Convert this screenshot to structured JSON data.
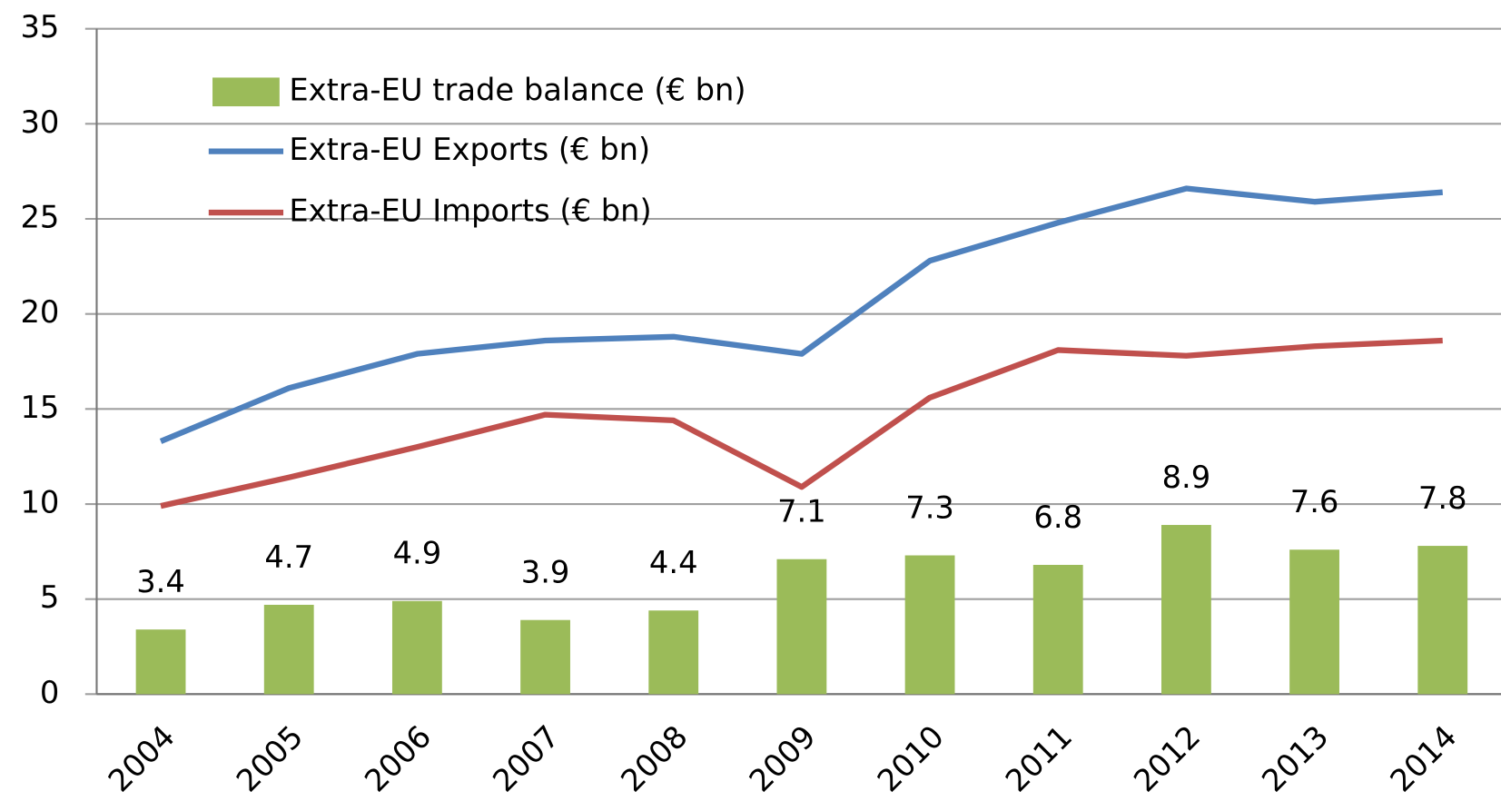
{
  "chart_data": {
    "type": "bar_line",
    "categories": [
      "2004",
      "2005",
      "2006",
      "2007",
      "2008",
      "2009",
      "2010",
      "2011",
      "2012",
      "2013",
      "2014"
    ],
    "series": [
      {
        "name": "Extra-EU trade balance (€ bn)",
        "type": "bar",
        "color": "#9bbb59",
        "values": [
          3.4,
          4.7,
          4.9,
          3.9,
          4.4,
          7.1,
          7.3,
          6.8,
          8.9,
          7.6,
          7.8
        ]
      },
      {
        "name": "Extra-EU Exports  (€ bn)",
        "type": "line",
        "color": "#4f81bd",
        "values": [
          13.3,
          16.1,
          17.9,
          18.6,
          18.8,
          17.9,
          22.8,
          24.8,
          26.6,
          25.9,
          26.4
        ]
      },
      {
        "name": "Extra-EU Imports (€ bn)",
        "type": "line",
        "color": "#c0504d",
        "values": [
          9.9,
          11.4,
          13.0,
          14.7,
          14.4,
          10.9,
          15.6,
          18.1,
          17.8,
          18.3,
          18.6
        ]
      }
    ],
    "ylim": [
      0,
      35
    ],
    "yticks": [
      0,
      5,
      10,
      15,
      20,
      25,
      30,
      35
    ],
    "grid": true
  }
}
